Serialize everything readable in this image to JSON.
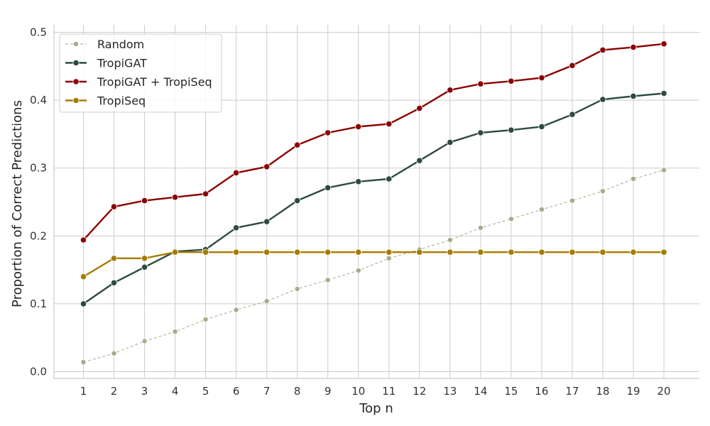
{
  "chart_data": {
    "type": "line",
    "xlabel": "Top n",
    "ylabel": "Proportion of Correct Predictions",
    "x": [
      1,
      2,
      3,
      4,
      5,
      6,
      7,
      8,
      9,
      10,
      11,
      12,
      13,
      14,
      15,
      16,
      17,
      18,
      19,
      20
    ],
    "xticks": [
      "1",
      "2",
      "3",
      "4",
      "5",
      "6",
      "7",
      "8",
      "9",
      "10",
      "11",
      "12",
      "13",
      "14",
      "15",
      "16",
      "17",
      "18",
      "19",
      "20"
    ],
    "yticks": [
      "0.0",
      "0.1",
      "0.2",
      "0.3",
      "0.4",
      "0.5"
    ],
    "ylim": [
      -0.01,
      0.5
    ],
    "grid": true,
    "legend_position": "top-left",
    "series": [
      {
        "name": "Random",
        "color": "#a3ad8a",
        "dashed": true,
        "values": [
          0.014,
          0.027,
          0.045,
          0.059,
          0.077,
          0.091,
          0.104,
          0.122,
          0.135,
          0.149,
          0.167,
          0.18,
          0.194,
          0.212,
          0.225,
          0.239,
          0.252,
          0.266,
          0.284,
          0.297
        ]
      },
      {
        "name": "TropiGAT",
        "color": "#2f4a3f",
        "dashed": false,
        "values": [
          0.1,
          0.131,
          0.154,
          0.177,
          0.18,
          0.212,
          0.221,
          0.252,
          0.271,
          0.28,
          0.284,
          0.311,
          0.338,
          0.352,
          0.356,
          0.361,
          0.379,
          0.401,
          0.406,
          0.41
        ]
      },
      {
        "name": "TropiGAT + TropiSeq",
        "color": "#8b0000",
        "dashed": false,
        "values": [
          0.194,
          0.243,
          0.252,
          0.257,
          0.262,
          0.293,
          0.302,
          0.334,
          0.352,
          0.361,
          0.365,
          0.388,
          0.415,
          0.424,
          0.428,
          0.433,
          0.451,
          0.474,
          0.478,
          0.483
        ]
      },
      {
        "name": "TropiSeq",
        "color": "#a67c00",
        "dashed": false,
        "values": [
          0.14,
          0.167,
          0.167,
          0.176,
          0.176,
          0.176,
          0.176,
          0.176,
          0.176,
          0.176,
          0.176,
          0.176,
          0.176,
          0.176,
          0.176,
          0.176,
          0.176,
          0.176,
          0.176,
          0.176
        ]
      }
    ]
  }
}
